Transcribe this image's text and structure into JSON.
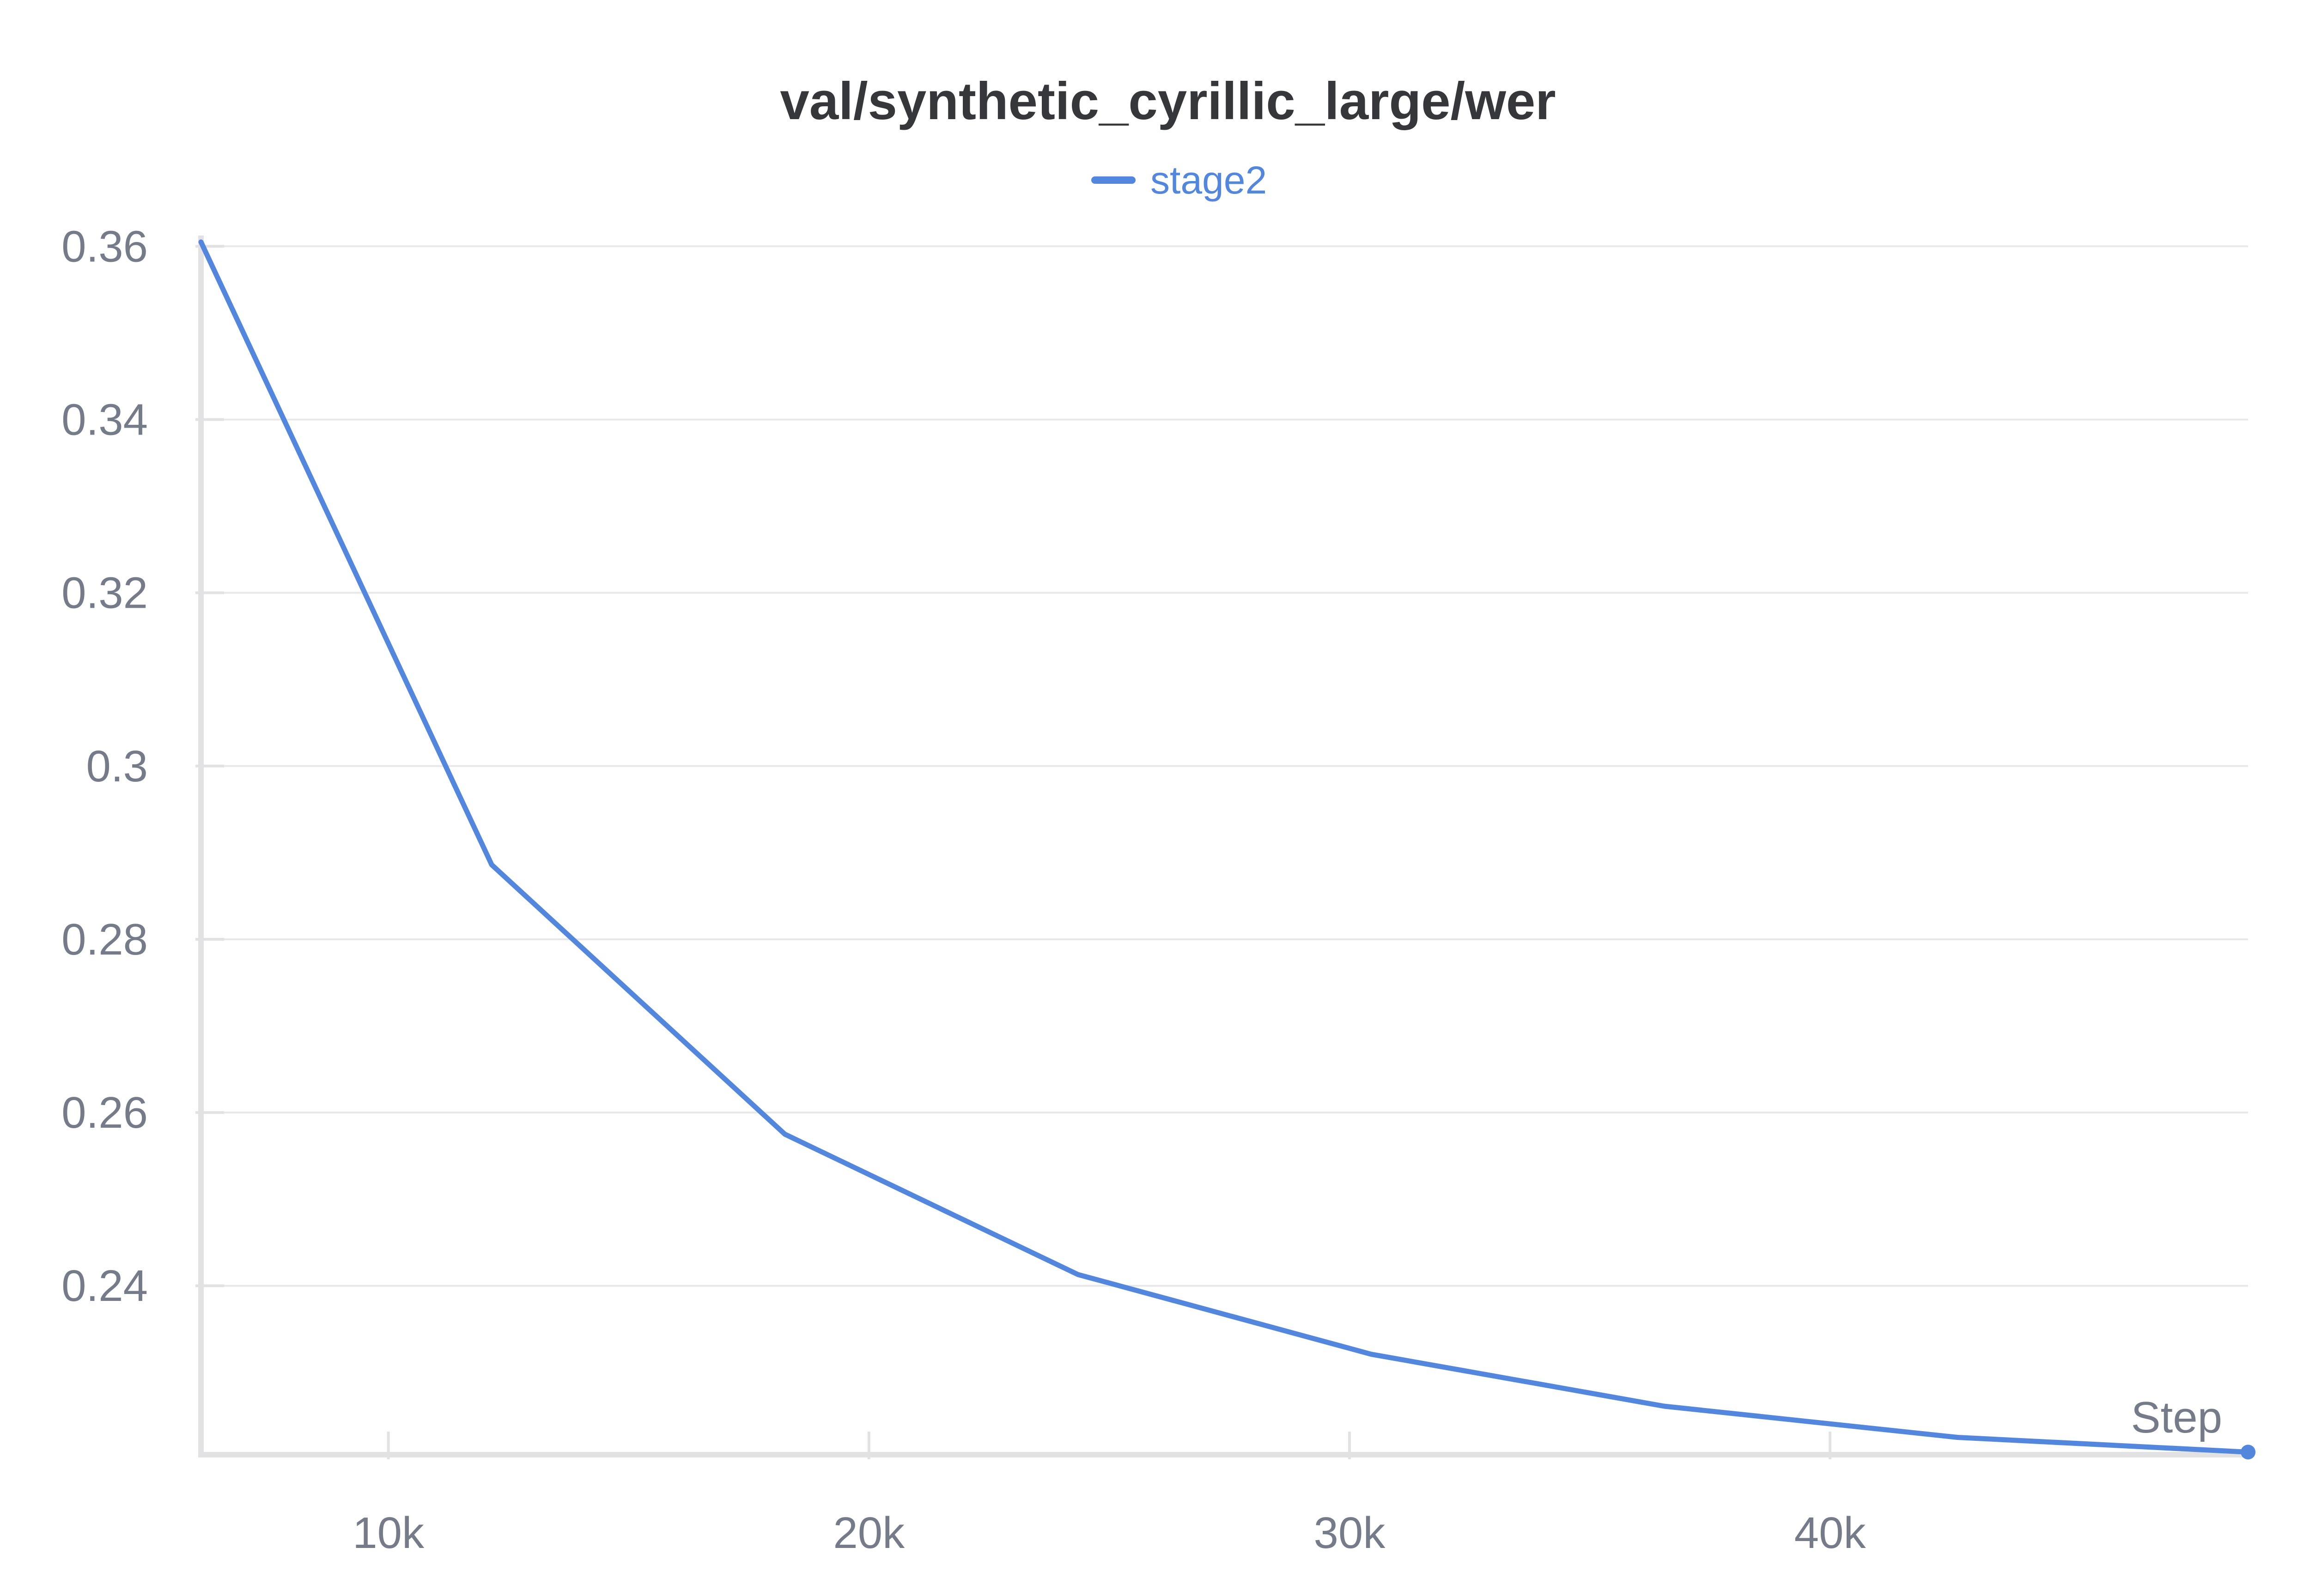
{
  "chart_data": {
    "type": "line",
    "title": "val/synthetic_cyrillic_large/wer",
    "xlabel": "Step",
    "ylabel": "",
    "xlim": [
      6100,
      48700
    ],
    "ylim": [
      0.2205,
      0.3605
    ],
    "xticks": [
      10000,
      20000,
      30000,
      40000
    ],
    "xtick_labels": [
      "10k",
      "20k",
      "30k",
      "40k"
    ],
    "yticks": [
      0.24,
      0.26,
      0.28,
      0.3,
      0.32,
      0.34,
      0.36
    ],
    "ytick_labels": [
      "0.24",
      "0.26",
      "0.28",
      "0.3",
      "0.32",
      "0.34",
      "0.36"
    ],
    "grid": true,
    "legend_position": "top-center",
    "series": [
      {
        "name": "stage2",
        "color": "#5387dd",
        "x": [
          6100,
          12150,
          18250,
          24350,
          30450,
          36550,
          42650,
          48700
        ],
        "y": [
          0.3605,
          0.2886,
          0.2575,
          0.2413,
          0.2321,
          0.2261,
          0.2225,
          0.2208
        ]
      }
    ]
  }
}
